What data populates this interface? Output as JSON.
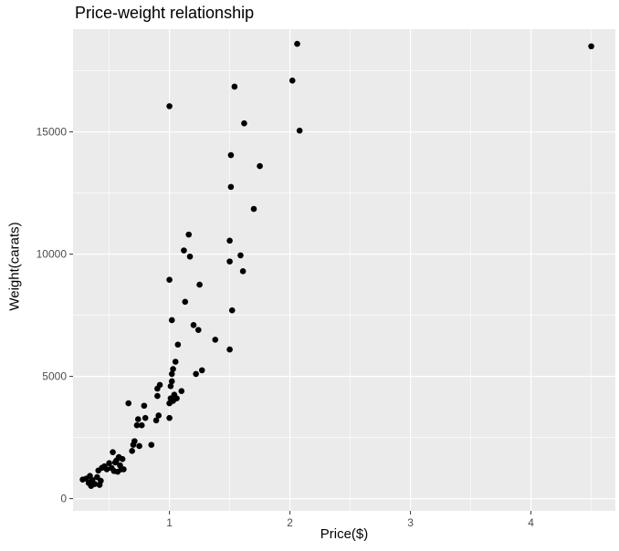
{
  "chart_data": {
    "type": "scatter",
    "title": "Price-weight relationship",
    "xlabel": "Price($)",
    "ylabel": "Weight(carats)",
    "xlim": [
      0.2,
      4.7
    ],
    "ylim": [
      -500,
      19200
    ],
    "x_ticks": [
      "1",
      "2",
      "3",
      "4"
    ],
    "y_ticks": [
      "0",
      "5000",
      "10000",
      "15000"
    ],
    "grid": true,
    "legend": "none",
    "colors": {
      "panel": "#ebebeb",
      "grid": "#ffffff",
      "point": "#000000"
    },
    "points": [
      [
        0.28,
        780
      ],
      [
        0.31,
        820
      ],
      [
        0.33,
        640
      ],
      [
        0.34,
        930
      ],
      [
        0.35,
        520
      ],
      [
        0.36,
        760
      ],
      [
        0.38,
        600
      ],
      [
        0.4,
        880
      ],
      [
        0.41,
        1150
      ],
      [
        0.42,
        560
      ],
      [
        0.43,
        730
      ],
      [
        0.44,
        1260
      ],
      [
        0.46,
        1320
      ],
      [
        0.48,
        1200
      ],
      [
        0.5,
        1450
      ],
      [
        0.52,
        1250
      ],
      [
        0.53,
        1900
      ],
      [
        0.54,
        1130
      ],
      [
        0.55,
        1480
      ],
      [
        0.56,
        1560
      ],
      [
        0.57,
        1100
      ],
      [
        0.58,
        1700
      ],
      [
        0.59,
        1360
      ],
      [
        0.6,
        1200
      ],
      [
        0.61,
        1620
      ],
      [
        0.62,
        1200
      ],
      [
        0.66,
        3900
      ],
      [
        0.69,
        1950
      ],
      [
        0.7,
        2200
      ],
      [
        0.71,
        2350
      ],
      [
        0.73,
        3000
      ],
      [
        0.74,
        3250
      ],
      [
        0.75,
        2150
      ],
      [
        0.77,
        3000
      ],
      [
        0.79,
        3800
      ],
      [
        0.8,
        3300
      ],
      [
        0.85,
        2200
      ],
      [
        0.89,
        3200
      ],
      [
        0.9,
        4200
      ],
      [
        0.9,
        4500
      ],
      [
        0.91,
        3400
      ],
      [
        0.92,
        4650
      ],
      [
        1.0,
        3300
      ],
      [
        1.0,
        3900
      ],
      [
        1.01,
        4100
      ],
      [
        1.01,
        4600
      ],
      [
        1.02,
        4800
      ],
      [
        1.02,
        5100
      ],
      [
        1.03,
        5300
      ],
      [
        1.03,
        4000
      ],
      [
        1.04,
        4250
      ],
      [
        1.05,
        5600
      ],
      [
        1.06,
        4100
      ],
      [
        1.07,
        6300
      ],
      [
        1.1,
        4400
      ],
      [
        1.0,
        16050
      ],
      [
        1.0,
        8950
      ],
      [
        1.02,
        7300
      ],
      [
        1.12,
        10150
      ],
      [
        1.13,
        8050
      ],
      [
        1.16,
        10800
      ],
      [
        1.17,
        9900
      ],
      [
        1.2,
        7100
      ],
      [
        1.22,
        5100
      ],
      [
        1.24,
        6900
      ],
      [
        1.25,
        8750
      ],
      [
        1.27,
        5250
      ],
      [
        1.38,
        6500
      ],
      [
        1.5,
        6100
      ],
      [
        1.5,
        9700
      ],
      [
        1.5,
        10550
      ],
      [
        1.51,
        12750
      ],
      [
        1.51,
        14050
      ],
      [
        1.52,
        7700
      ],
      [
        1.54,
        16850
      ],
      [
        1.59,
        9950
      ],
      [
        1.61,
        9300
      ],
      [
        1.62,
        15350
      ],
      [
        1.7,
        11850
      ],
      [
        1.75,
        13600
      ],
      [
        2.02,
        17100
      ],
      [
        2.06,
        18600
      ],
      [
        2.08,
        15050
      ],
      [
        4.5,
        18500
      ]
    ]
  }
}
